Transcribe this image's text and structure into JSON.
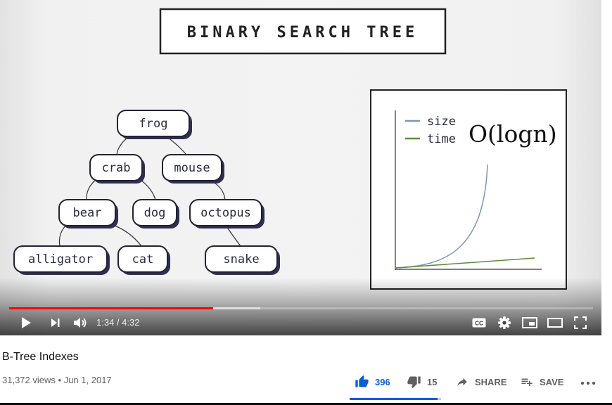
{
  "video": {
    "slide": {
      "title": "BINARY SEARCH TREE",
      "tree_nodes": [
        "frog",
        "crab",
        "mouse",
        "bear",
        "dog",
        "octopus",
        "alligator",
        "cat",
        "snake"
      ],
      "legend": {
        "size_label": "size",
        "time_label": "time",
        "size_color": "#7d96b3",
        "time_color": "#5e8d3a"
      },
      "complexity": "O(logn)"
    },
    "progress": {
      "played_fraction": 0.349,
      "buffered_fraction": 0.43
    },
    "time_display": "1:34 / 4:32",
    "controls": [
      "play-icon",
      "next-icon",
      "volume-icon",
      "captions-icon",
      "settings-gear-icon",
      "miniplayer-icon",
      "theater-mode-icon",
      "fullscreen-icon"
    ],
    "accent_color": "#ff0000"
  },
  "info": {
    "title": "B-Tree Indexes",
    "views": "31,372 views",
    "separator": "•",
    "date": "Jun 1, 2017"
  },
  "actions": {
    "like_count": "396",
    "dislike_count": "15",
    "share_label": "SHARE",
    "save_label": "SAVE",
    "like_fraction": 0.96,
    "like_color": "#065fd4"
  }
}
